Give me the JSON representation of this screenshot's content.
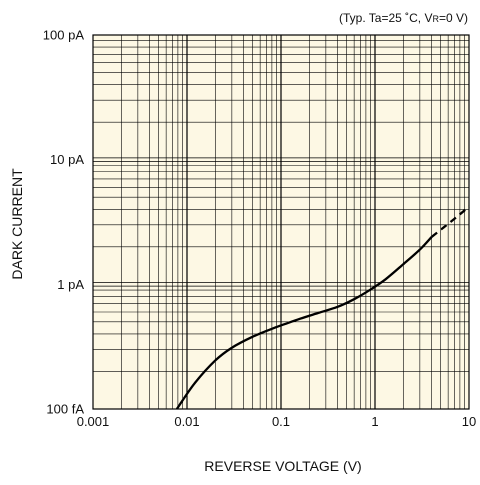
{
  "chart_data": {
    "type": "line",
    "title": "",
    "condition": {
      "prefix": "(Typ. Ta=25 ˚C, V",
      "subscript": "R",
      "suffix": "=0 V)"
    },
    "xlabel": "REVERSE VOLTAGE (V)",
    "ylabel": "DARK CURRENT",
    "x_scale": "log",
    "y_scale": "log",
    "xlim": [
      0.001,
      10
    ],
    "ylim": [
      1e-13,
      1e-10
    ],
    "x_ticks": [
      {
        "value": 0.001,
        "label": "0.001"
      },
      {
        "value": 0.01,
        "label": "0.01"
      },
      {
        "value": 0.1,
        "label": "0.1"
      },
      {
        "value": 1,
        "label": "1"
      },
      {
        "value": 10,
        "label": "10"
      }
    ],
    "y_ticks": [
      {
        "value": 1e-13,
        "label": "100 fA"
      },
      {
        "value": 1e-12,
        "label": "1 pA"
      },
      {
        "value": 1e-11,
        "label": "10 pA"
      },
      {
        "value": 1e-10,
        "label": "100 pA"
      }
    ],
    "grid": true,
    "background_color": "#fdf8e4",
    "line_color": "#000000",
    "series": [
      {
        "name": "",
        "style": "solid",
        "x": [
          0.0078,
          0.012,
          0.02,
          0.03,
          0.05,
          0.08,
          0.11,
          0.16,
          0.25,
          0.4,
          0.6,
          0.9,
          1.3,
          2.0,
          3.0,
          4.0
        ],
        "y": [
          1e-13,
          1.6e-13,
          2.45e-13,
          3.1e-13,
          3.8e-13,
          4.4e-13,
          4.8e-13,
          5.3e-13,
          5.9e-13,
          6.6e-13,
          7.6e-13,
          9.1e-13,
          1.1e-12,
          1.45e-12,
          1.9e-12,
          2.4e-12
        ]
      },
      {
        "name": "",
        "style": "dashed",
        "x": [
          4.0,
          5.5,
          7.5,
          10
        ],
        "y": [
          2.4e-12,
          2.9e-12,
          3.5e-12,
          4.2e-12
        ]
      }
    ]
  }
}
